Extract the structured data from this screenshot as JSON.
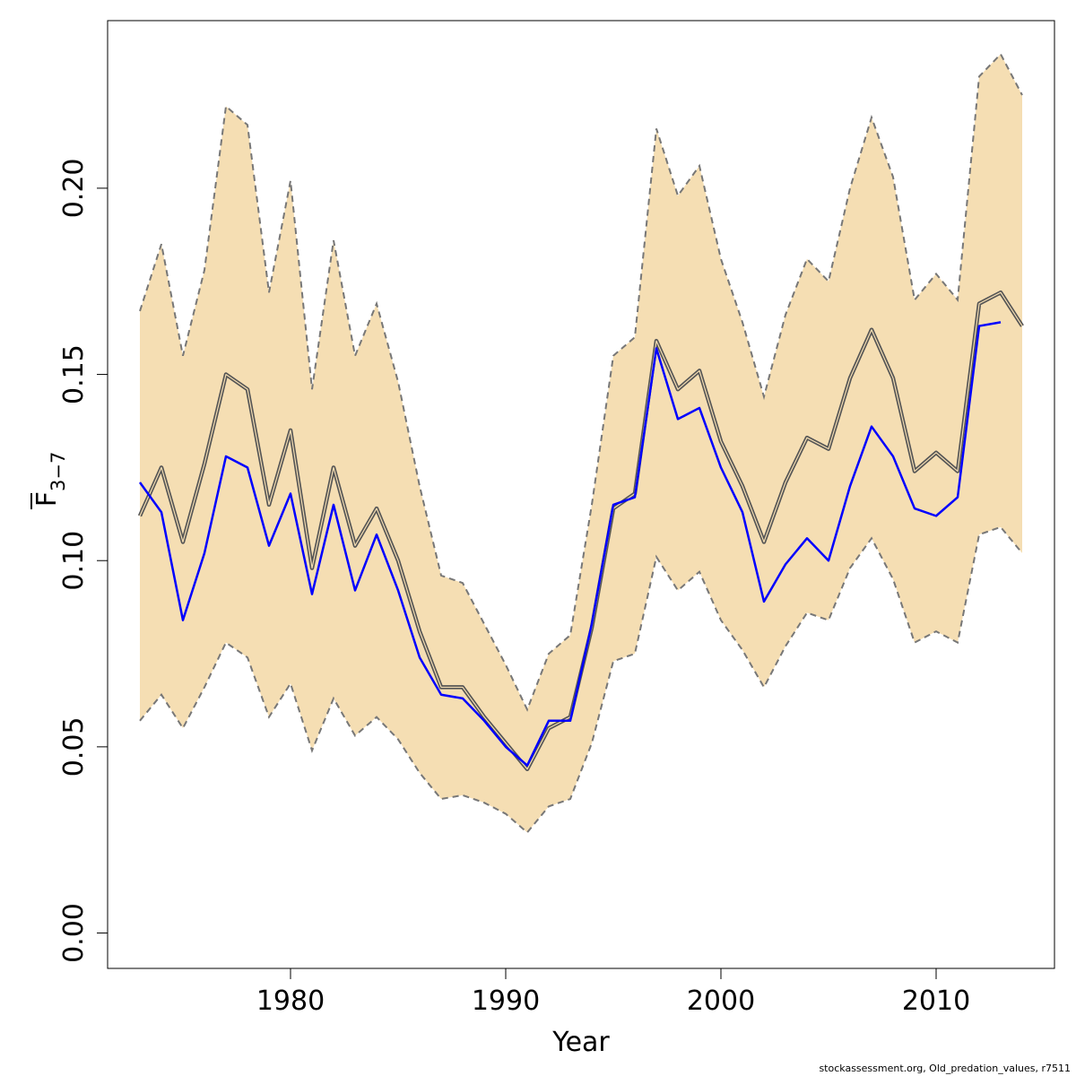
{
  "chart_data": {
    "type": "line",
    "xlabel": "Year",
    "ylabel": {
      "main": "F",
      "sub": "3−7"
    },
    "xlim": [
      1971.5,
      2015.5
    ],
    "ylim": [
      -0.0095,
      0.245
    ],
    "x_ticks": [
      1980,
      1990,
      2000,
      2010
    ],
    "x_tick_labels": [
      "1980",
      "1990",
      "2000",
      "2010"
    ],
    "y_ticks": [
      0.0,
      0.05,
      0.1,
      0.15,
      0.2
    ],
    "y_tick_labels": [
      "0.00",
      "0.05",
      "0.10",
      "0.15",
      "0.20"
    ],
    "grid": false,
    "colors": {
      "band": "#f5deb3",
      "band_edge": "#777777",
      "estimate": "#555555",
      "comparison": "#0000ff"
    },
    "x": [
      1973,
      1974,
      1975,
      1976,
      1977,
      1978,
      1979,
      1980,
      1981,
      1982,
      1983,
      1984,
      1985,
      1986,
      1987,
      1988,
      1989,
      1990,
      1991,
      1992,
      1993,
      1994,
      1995,
      1996,
      1997,
      1998,
      1999,
      2000,
      2001,
      2002,
      2003,
      2004,
      2005,
      2006,
      2007,
      2008,
      2009,
      2010,
      2011,
      2012,
      2013,
      2014
    ],
    "series": [
      {
        "role": "upper",
        "values": [
          0.167,
          0.185,
          0.155,
          0.178,
          0.222,
          0.217,
          0.172,
          0.202,
          0.146,
          0.186,
          0.155,
          0.169,
          0.148,
          0.12,
          0.096,
          0.094,
          0.083,
          0.072,
          0.06,
          0.075,
          0.08,
          0.115,
          0.155,
          0.16,
          0.216,
          0.198,
          0.206,
          0.181,
          0.164,
          0.144,
          0.166,
          0.181,
          0.175,
          0.2,
          0.219,
          0.203,
          0.17,
          0.177,
          0.17,
          0.23,
          0.236,
          0.225
        ]
      },
      {
        "role": "lower",
        "values": [
          0.057,
          0.064,
          0.055,
          0.066,
          0.078,
          0.074,
          0.058,
          0.067,
          0.049,
          0.063,
          0.053,
          0.058,
          0.052,
          0.043,
          0.036,
          0.037,
          0.035,
          0.032,
          0.027,
          0.034,
          0.036,
          0.051,
          0.073,
          0.075,
          0.101,
          0.092,
          0.097,
          0.084,
          0.076,
          0.066,
          0.077,
          0.086,
          0.084,
          0.098,
          0.106,
          0.095,
          0.078,
          0.081,
          0.078,
          0.107,
          0.109,
          0.102
        ]
      },
      {
        "role": "estimate",
        "values": [
          0.112,
          0.125,
          0.105,
          0.126,
          0.15,
          0.146,
          0.115,
          0.135,
          0.098,
          0.125,
          0.104,
          0.114,
          0.1,
          0.081,
          0.066,
          0.066,
          0.058,
          0.051,
          0.044,
          0.055,
          0.058,
          0.082,
          0.114,
          0.118,
          0.159,
          0.146,
          0.151,
          0.132,
          0.12,
          0.105,
          0.121,
          0.133,
          0.13,
          0.149,
          0.162,
          0.149,
          0.124,
          0.129,
          0.124,
          0.169,
          0.172,
          0.163
        ]
      },
      {
        "role": "comparison",
        "values": [
          0.121,
          0.113,
          0.084,
          0.102,
          0.128,
          0.125,
          0.104,
          0.118,
          0.091,
          0.115,
          0.092,
          0.107,
          0.092,
          0.074,
          0.064,
          0.063,
          0.057,
          0.05,
          0.045,
          0.057,
          0.057,
          0.083,
          0.115,
          0.117,
          0.157,
          0.138,
          0.141,
          0.125,
          0.113,
          0.089,
          0.099,
          0.106,
          0.1,
          0.12,
          0.136,
          0.128,
          0.114,
          0.112,
          0.117,
          0.163,
          0.164,
          null
        ]
      }
    ]
  },
  "footer": "stockassessment.org, Old_predation_values, r7511"
}
